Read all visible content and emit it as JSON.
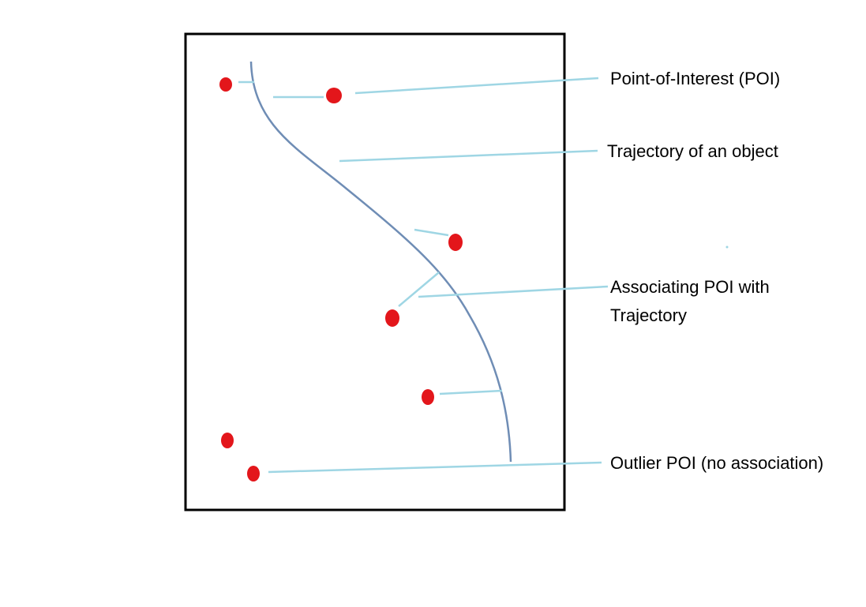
{
  "labels": {
    "poi": "Point-of-Interest (POI)",
    "trajectory": "Trajectory of an object",
    "associating_line1": "Associating POI with",
    "associating_line2": "Trajectory",
    "outlier": "Outlier POI (no association)"
  },
  "colors": {
    "frame": "#000000",
    "trajectory": "#6f8db5",
    "poi": "#e3161b",
    "leader": "#9fd6e4",
    "text": "#000000"
  }
}
